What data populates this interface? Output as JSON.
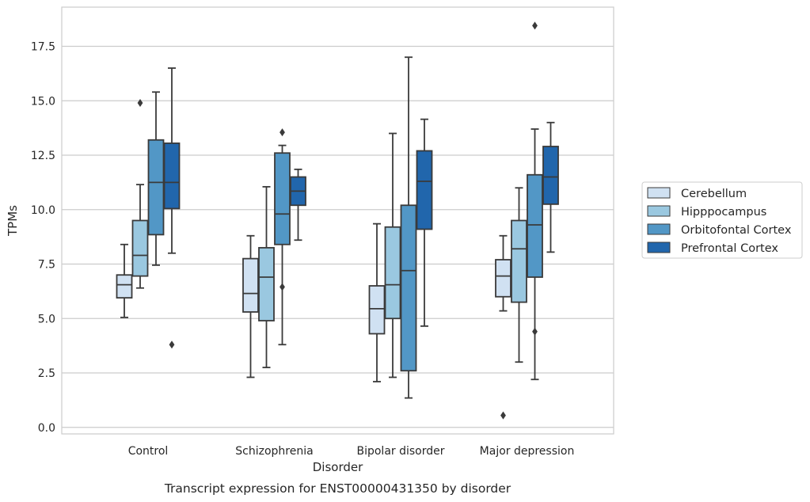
{
  "chart_data": {
    "type": "box",
    "title": "",
    "caption": "Transcript expression for ENST00000431350 by disorder",
    "xlabel": "Disorder",
    "ylabel": "TPMs",
    "ylim": [
      -0.3,
      19.3
    ],
    "yticks": [
      0.0,
      2.5,
      5.0,
      7.5,
      10.0,
      12.5,
      15.0,
      17.5
    ],
    "ytick_labels": [
      "0.0",
      "2.5",
      "5.0",
      "7.5",
      "10.0",
      "12.5",
      "15.0",
      "17.5"
    ],
    "grid": "horizontal",
    "legend_position": "right",
    "categories": [
      "Control",
      "Schizophrenia",
      "Bipolar disorder",
      "Major depression"
    ],
    "series": [
      {
        "name": "Cerebellum",
        "color": "#d0e1f2",
        "boxes": [
          {
            "whislo": 5.05,
            "q1": 5.95,
            "med": 6.55,
            "q3": 7.0,
            "whishi": 8.4,
            "fliers": []
          },
          {
            "whislo": 2.3,
            "q1": 5.3,
            "med": 6.15,
            "q3": 7.75,
            "whishi": 8.8,
            "fliers": []
          },
          {
            "whislo": 2.1,
            "q1": 4.3,
            "med": 5.45,
            "q3": 6.5,
            "whishi": 9.35,
            "fliers": []
          },
          {
            "whislo": 5.35,
            "q1": 6.0,
            "med": 6.95,
            "q3": 7.7,
            "whishi": 8.8,
            "fliers": [
              0.55
            ]
          }
        ]
      },
      {
        "name": "Hipppocampus",
        "color": "#9ac8e0",
        "boxes": [
          {
            "whislo": 6.4,
            "q1": 6.95,
            "med": 7.9,
            "q3": 9.5,
            "whishi": 11.15,
            "fliers": [
              14.9
            ]
          },
          {
            "whislo": 2.75,
            "q1": 4.9,
            "med": 6.9,
            "q3": 8.25,
            "whishi": 11.05,
            "fliers": []
          },
          {
            "whislo": 2.3,
            "q1": 5.0,
            "med": 6.55,
            "q3": 9.2,
            "whishi": 13.5,
            "fliers": []
          },
          {
            "whislo": 3.0,
            "q1": 5.75,
            "med": 8.2,
            "q3": 9.5,
            "whishi": 11.0,
            "fliers": []
          }
        ]
      },
      {
        "name": "Orbitofontal Cortex",
        "color": "#5297c6",
        "boxes": [
          {
            "whislo": 7.45,
            "q1": 8.85,
            "med": 11.25,
            "q3": 13.2,
            "whishi": 15.4,
            "fliers": []
          },
          {
            "whislo": 3.8,
            "q1": 8.4,
            "med": 9.8,
            "q3": 12.6,
            "whishi": 12.95,
            "fliers": [
              6.45,
              13.55
            ]
          },
          {
            "whislo": 1.35,
            "q1": 2.6,
            "med": 7.2,
            "q3": 10.2,
            "whishi": 17.0,
            "fliers": []
          },
          {
            "whislo": 2.2,
            "q1": 6.9,
            "med": 9.3,
            "q3": 11.6,
            "whishi": 13.7,
            "fliers": [
              4.4,
              18.45
            ]
          }
        ]
      },
      {
        "name": "Prefrontal Cortex",
        "color": "#2166ac",
        "boxes": [
          {
            "whislo": 8.0,
            "q1": 10.05,
            "med": 11.25,
            "q3": 13.05,
            "whishi": 16.5,
            "fliers": [
              3.8
            ]
          },
          {
            "whislo": 8.6,
            "q1": 10.2,
            "med": 10.85,
            "q3": 11.5,
            "whishi": 11.85,
            "fliers": []
          },
          {
            "whislo": 4.65,
            "q1": 9.1,
            "med": 11.3,
            "q3": 12.7,
            "whishi": 14.15,
            "fliers": []
          },
          {
            "whislo": 8.05,
            "q1": 10.25,
            "med": 11.5,
            "q3": 12.9,
            "whishi": 14.0,
            "fliers": []
          }
        ]
      }
    ]
  }
}
